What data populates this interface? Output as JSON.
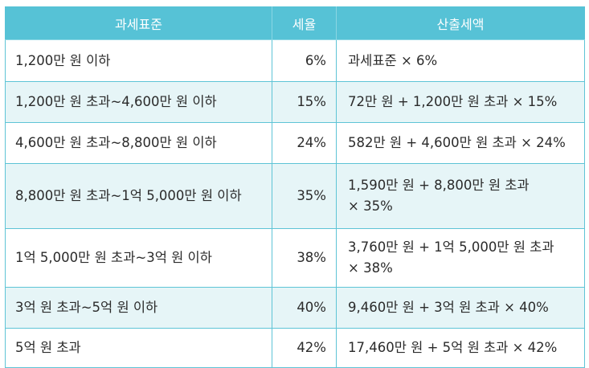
{
  "table": {
    "headers": {
      "bracket": "과세표준",
      "rate": "세율",
      "calc": "산출세액"
    },
    "rows": [
      {
        "bracket": "1,200만 원 이하",
        "rate": "6%",
        "calc": "과세표준 × 6%"
      },
      {
        "bracket": "1,200만 원 초과~4,600만 원 이하",
        "rate": "15%",
        "calc": "72만 원 + 1,200만 원 초과 × 15%"
      },
      {
        "bracket": "4,600만 원 초과~8,800만 원 이하",
        "rate": "24%",
        "calc": "582만 원 + 4,600만 원 초과 × 24%"
      },
      {
        "bracket": "8,800만 원 초과~1억 5,000만 원 이하",
        "rate": "35%",
        "calc": "1,590만 원 + 8,800만 원 초과\n× 35%"
      },
      {
        "bracket": "1억 5,000만 원 초과~3억 원 이하",
        "rate": "38%",
        "calc": "3,760만 원 + 1억 5,000만 원 초과\n× 38%"
      },
      {
        "bracket": "3억 원 초과~5억 원 이하",
        "rate": "40%",
        "calc": "9,460만 원 + 3억 원 초과 × 40%"
      },
      {
        "bracket": "5억 원 초과",
        "rate": "42%",
        "calc": "17,460만 원 + 5억 원 초과 × 42%"
      }
    ]
  },
  "colors": {
    "header_bg": "#56c2d6",
    "border": "#5ec4d6",
    "stripe": "#e6f5f7"
  }
}
